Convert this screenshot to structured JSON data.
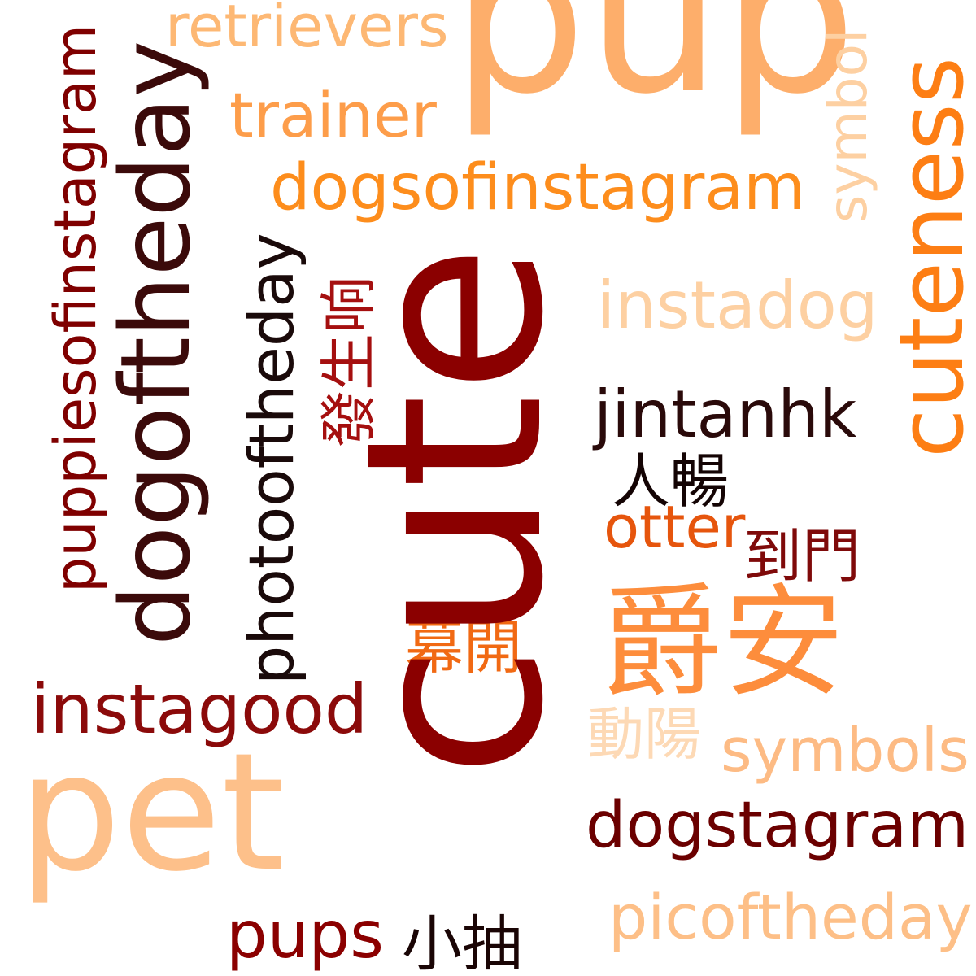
{
  "words": {
    "cute": {
      "text": "cute",
      "color": "#8b0000"
    },
    "pup": {
      "text": "pup",
      "color": "#fdae6b"
    },
    "cuteness": {
      "text": "cuteness",
      "color": "#fd7e14"
    },
    "dogoftheday": {
      "text": "dogoftheday",
      "color": "#3b0a0a"
    },
    "puppiesofinstagram": {
      "text": "puppiesofinstagram",
      "color": "#7f0000"
    },
    "photooftheday": {
      "text": "photooftheday",
      "color": "#1a0a0a"
    },
    "pet": {
      "text": "pet",
      "color": "#fdc08a"
    },
    "jueoan": {
      "text": "爵安",
      "color": "#fd8d3c"
    },
    "retrievers": {
      "text": "retrievers",
      "color": "#fdb874"
    },
    "trainer": {
      "text": "trainer",
      "color": "#fd9d4a"
    },
    "dogsofinstagram": {
      "text": "dogsofinstagram",
      "color": "#fd8d1c"
    },
    "symbol": {
      "text": "symbol",
      "color": "#fdd0a2"
    },
    "instadog": {
      "text": "instadog",
      "color": "#fdd0a2"
    },
    "fasangheung": {
      "text": "發生响",
      "color": "#a50f0f"
    },
    "jintanhk": {
      "text": "jintanhk",
      "color": "#2a0a0a"
    },
    "yancheung": {
      "text": "人暢",
      "color": "#140404"
    },
    "otter": {
      "text": "otter",
      "color": "#e6550d"
    },
    "doumun": {
      "text": "到門",
      "color": "#7f0a0a"
    },
    "mokhoi": {
      "text": "幕開",
      "color": "#f16913"
    },
    "instagood": {
      "text": "instagood",
      "color": "#8b0a0a"
    },
    "dungyeung": {
      "text": "動陽",
      "color": "#fdd9b5"
    },
    "symbols": {
      "text": "symbols",
      "color": "#fdbb84"
    },
    "dogstagram": {
      "text": "dogstagram",
      "color": "#6b0000"
    },
    "pups": {
      "text": "pups",
      "color": "#8b0000"
    },
    "siuchau": {
      "text": "小抽",
      "color": "#1a0505"
    },
    "picoftheday": {
      "text": "picoftheday",
      "color": "#fdbf87"
    }
  }
}
